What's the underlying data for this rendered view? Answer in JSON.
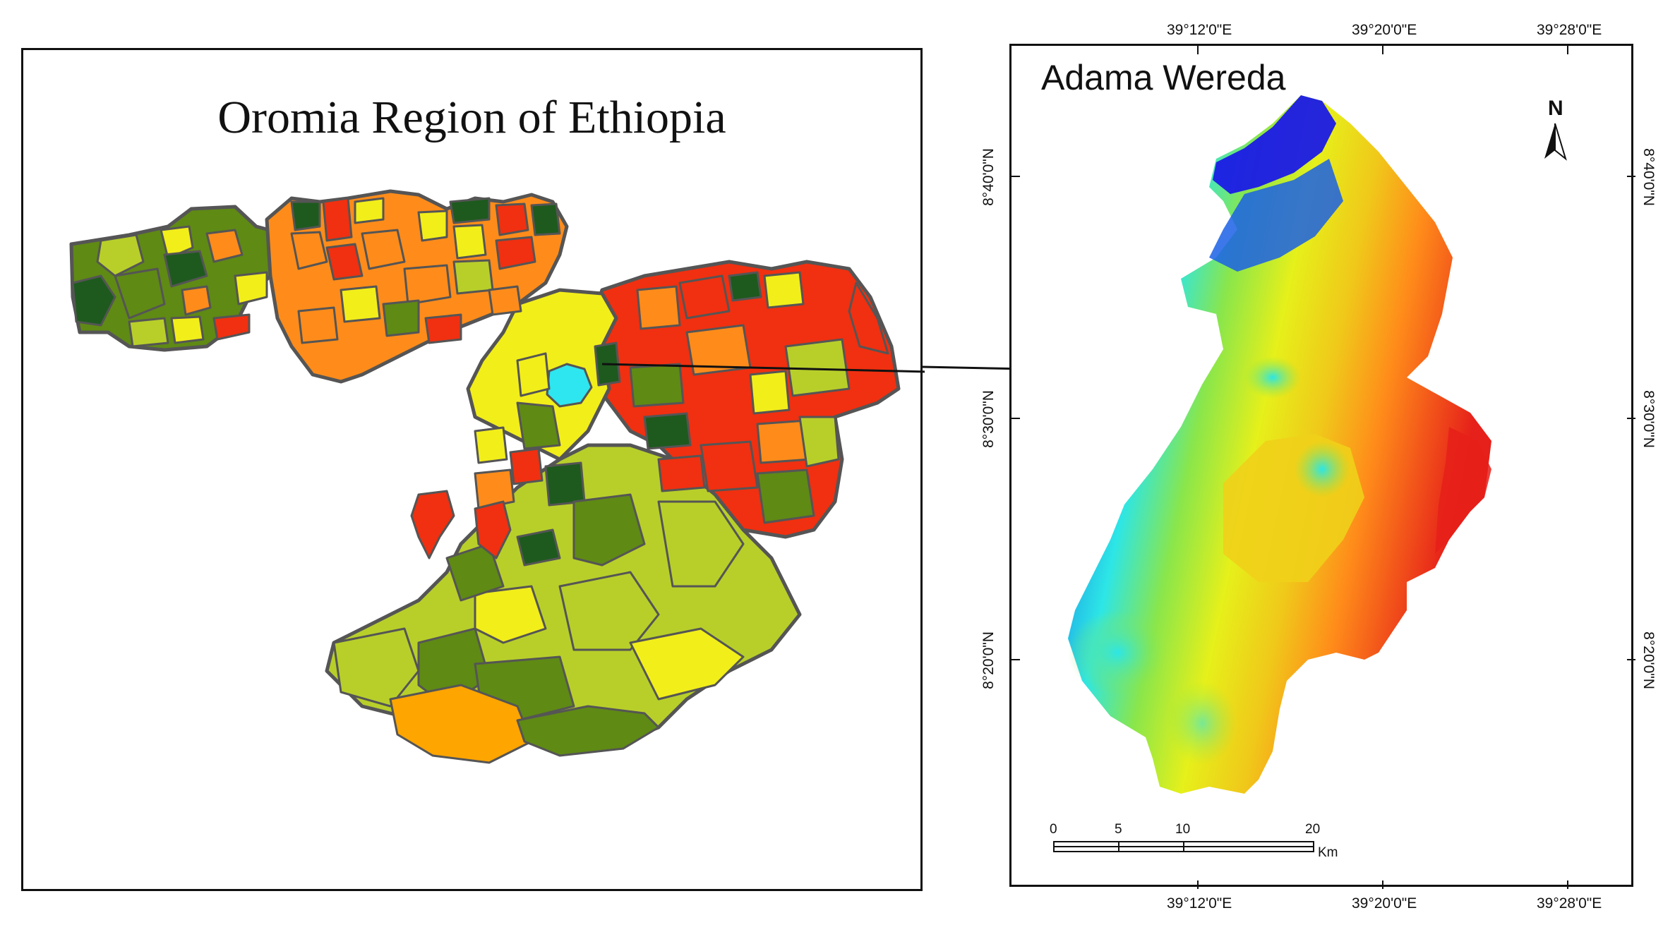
{
  "left_map": {
    "title": "Oromia Region of Ethiopia"
  },
  "right_map": {
    "title": "Adama Wereda",
    "north_label": "N",
    "top_ticks": [
      "39°12'0\"E",
      "39°20'0\"E",
      "39°28'0\"E"
    ],
    "bottom_ticks": [
      "39°12'0\"E",
      "39°20'0\"E",
      "39°28'0\"E"
    ],
    "left_ticks": [
      "8°40'0\"N",
      "8°30'0\"N",
      "8°20'0\"N"
    ],
    "right_ticks": [
      "8°40'0\"N",
      "8°30'0\"N",
      "8°20'0\"N"
    ],
    "scale_labels": [
      "0",
      "5",
      "10",
      "20"
    ],
    "scale_unit": "Km"
  },
  "colors": {
    "dark_green": "#1e5a1e",
    "olive": "#5f8a14",
    "yellow_green": "#b8cf2a",
    "yellow": "#f2ee1a",
    "orange": "#ff8c1a",
    "red": "#f03010",
    "cyan_highlight": "#2de6f0",
    "elev_low": "#1a1ae6",
    "elev_high": "#e6201a"
  }
}
